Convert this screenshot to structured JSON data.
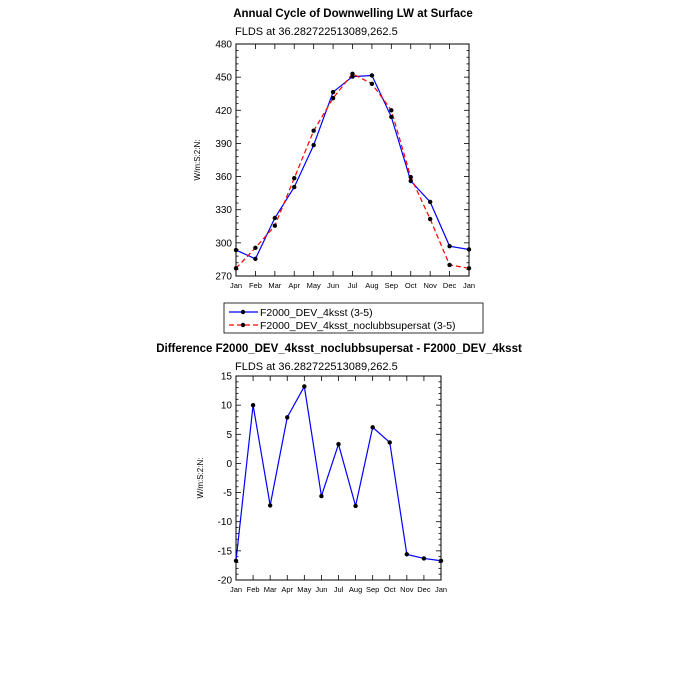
{
  "chart_data": [
    {
      "type": "line",
      "title": "Annual Cycle of Downwelling LW at Surface",
      "subtitle": "FLDS at 36.282722513089,262.5",
      "ylabel": "W/m:S:2:N:",
      "ylim": [
        270,
        480
      ],
      "yticks": [
        270,
        300,
        330,
        360,
        390,
        420,
        450,
        480
      ],
      "categories": [
        "Jan",
        "Feb",
        "Mar",
        "Apr",
        "May",
        "Jun",
        "Jul",
        "Aug",
        "Sep",
        "Oct",
        "Nov",
        "Dec",
        "Jan"
      ],
      "series": [
        {
          "name": "F2000_DEV_4ksst (3-5)",
          "color": "#0000ff",
          "style": "solid",
          "values": [
            293.5,
            285.5,
            322.5,
            350.5,
            388.5,
            436.5,
            450.5,
            451.5,
            414,
            356,
            337,
            297,
            294
          ]
        },
        {
          "name": "F2000_DEV_4ksst_noclubbsupersat (3-5)",
          "color": "#ff0000",
          "style": "dashed",
          "values": [
            277,
            295.5,
            315.5,
            358.5,
            401.5,
            431,
            453,
            444,
            420,
            359.5,
            321.5,
            280,
            277
          ]
        }
      ],
      "grid": false,
      "legend": "bottom"
    },
    {
      "type": "line",
      "title": "Difference F2000_DEV_4ksst_noclubbsupersat - F2000_DEV_4ksst",
      "subtitle": "FLDS at 36.282722513089,262.5",
      "ylabel": "W/m:S:2:N:",
      "ylim": [
        -20,
        15
      ],
      "yticks": [
        -20,
        -15,
        -10,
        -5,
        0,
        5,
        10,
        15
      ],
      "categories": [
        "Jan",
        "Feb",
        "Mar",
        "Apr",
        "May",
        "Jun",
        "Jul",
        "Aug",
        "Sep",
        "Oct",
        "Nov",
        "Dec",
        "Jan"
      ],
      "series": [
        {
          "color": "#0000ff",
          "style": "solid",
          "values": [
            -16.7,
            10,
            -7.2,
            7.9,
            13.2,
            -5.6,
            3.3,
            -7.3,
            6.2,
            3.6,
            -15.6,
            -16.3,
            -16.7
          ]
        }
      ],
      "grid": false
    }
  ]
}
